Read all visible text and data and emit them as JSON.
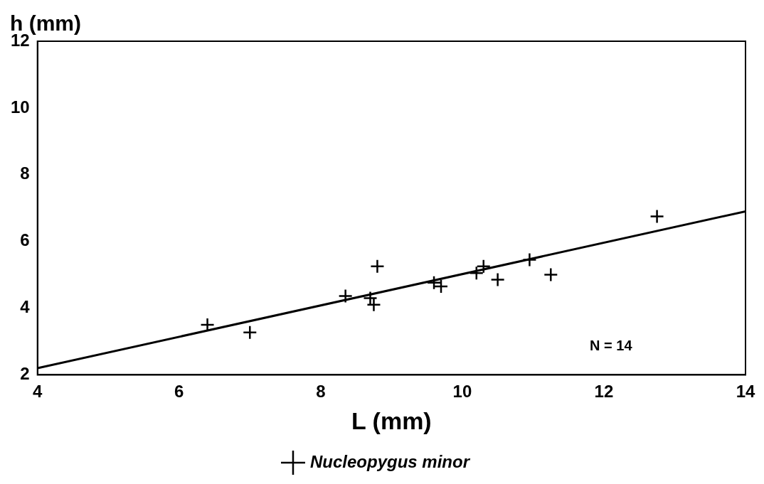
{
  "chart_data": {
    "type": "scatter",
    "xlabel": "L (mm)",
    "ylabel": "h (mm)",
    "xlim": [
      4,
      14
    ],
    "ylim": [
      2,
      12
    ],
    "xticks": [
      4,
      6,
      8,
      10,
      12,
      14
    ],
    "yticks": [
      2,
      4,
      6,
      8,
      10,
      12
    ],
    "grid": false,
    "legend": "bottom",
    "annotations": [
      "N = 14"
    ],
    "series": [
      {
        "name": "Nucleopygus minor",
        "color": "#000000",
        "marker": "cross",
        "x": [
          6.4,
          7.0,
          8.35,
          8.7,
          8.75,
          8.8,
          9.6,
          9.7,
          10.2,
          10.3,
          10.5,
          10.95,
          11.25,
          12.75
        ],
        "values": [
          3.5,
          3.27,
          4.36,
          4.3,
          4.1,
          5.25,
          4.76,
          4.65,
          5.05,
          5.25,
          4.85,
          5.45,
          5.0,
          6.75
        ]
      },
      {
        "type": "line",
        "color": "#000000",
        "x": [
          4,
          14
        ],
        "values": [
          2.2,
          6.9
        ]
      }
    ]
  }
}
